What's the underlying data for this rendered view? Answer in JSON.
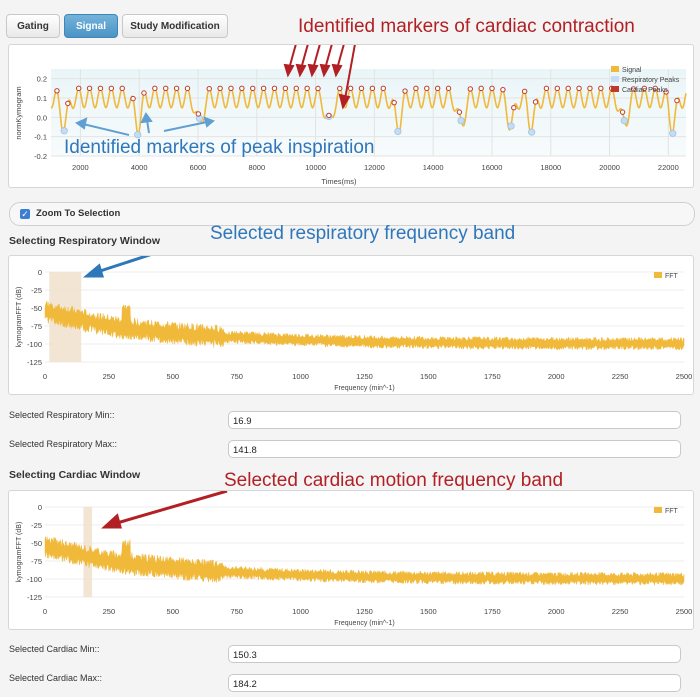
{
  "tabs": [
    {
      "label": "Gating",
      "active": false
    },
    {
      "label": "Signal",
      "active": true
    },
    {
      "label": "Study Modification",
      "active": false
    }
  ],
  "annotations": {
    "cardiac_contraction": "Identified markers of cardiac contraction",
    "peak_inspiration": "Identified markers of peak inspiration",
    "resp_band": "Selected respiratory frequency band",
    "cardiac_band": "Selected cardiac motion frequency band"
  },
  "colors": {
    "signal": "#f0b93a",
    "resp_peak_fill": "#c5dcf2",
    "cardiac_peak": "#c0392b",
    "annotation_red": "#b21f24",
    "annotation_blue": "#2f77bb",
    "band_fill": "#f1e2cf"
  },
  "zoom": {
    "label": "Zoom To Selection",
    "checked": true
  },
  "resp_section": {
    "title": "Selecting Respiratory Window",
    "min_label": "Selected Respiratory Min::",
    "min_value": "16.9",
    "max_label": "Selected Respiratory Max::",
    "max_value": "141.8"
  },
  "cardiac_section": {
    "title": "Selecting Cardiac Window",
    "min_label": "Selected Cardiac Min::",
    "min_value": "150.3",
    "max_label": "Selected Cardiac Max::",
    "max_value": "184.2"
  },
  "chart_data": [
    {
      "type": "line",
      "xlabel": "Times(ms)",
      "ylabel": "normKymogram",
      "xlim": [
        1000,
        22600
      ],
      "ylim": [
        -0.2,
        0.25
      ],
      "x_ticks": [
        "2000",
        "4000",
        "6000",
        "8000",
        "10000",
        "12000",
        "14000",
        "16000",
        "18000",
        "20000",
        "22000"
      ],
      "y_ticks": [
        "0.2",
        "0.1",
        "0.0",
        "-0.1",
        "-0.2"
      ],
      "legend": [
        "Signal",
        "Respiratory Peaks",
        "Cardiac Peaks"
      ],
      "legend_position": "top-right",
      "resp_peak_times": [
        1450,
        3950,
        6050,
        10450,
        12800,
        14950,
        16650,
        17350,
        20500,
        22150
      ],
      "series": [
        {
          "name": "Signal",
          "note": "oscillating respiratory + cardiac kymogram, range ~ -0.08 to 0.17"
        }
      ]
    },
    {
      "type": "area",
      "xlabel": "Frequency (min^-1)",
      "ylabel": "kymogramFFT (dB)",
      "xlim": [
        0,
        2500
      ],
      "ylim": [
        -125,
        0
      ],
      "x_ticks": [
        "0",
        "250",
        "500",
        "750",
        "1000",
        "1250",
        "1500",
        "1750",
        "2000",
        "2250",
        "2500"
      ],
      "y_ticks": [
        "0",
        "-25",
        "-50",
        "-75",
        "-100",
        "-125"
      ],
      "legend": [
        "FFT"
      ],
      "legend_position": "top-right",
      "selected_band": [
        16.9,
        141.8
      ]
    },
    {
      "type": "area",
      "xlabel": "Frequency (min^-1)",
      "ylabel": "kymogramFFT (dB)",
      "xlim": [
        0,
        2500
      ],
      "ylim": [
        -125,
        0
      ],
      "x_ticks": [
        "0",
        "250",
        "500",
        "750",
        "1000",
        "1250",
        "1500",
        "1750",
        "2000",
        "2250",
        "2500"
      ],
      "y_ticks": [
        "0",
        "-25",
        "-50",
        "-75",
        "-100",
        "-125"
      ],
      "legend": [
        "FFT"
      ],
      "legend_position": "top-right",
      "selected_band": [
        150.3,
        184.2
      ]
    }
  ]
}
